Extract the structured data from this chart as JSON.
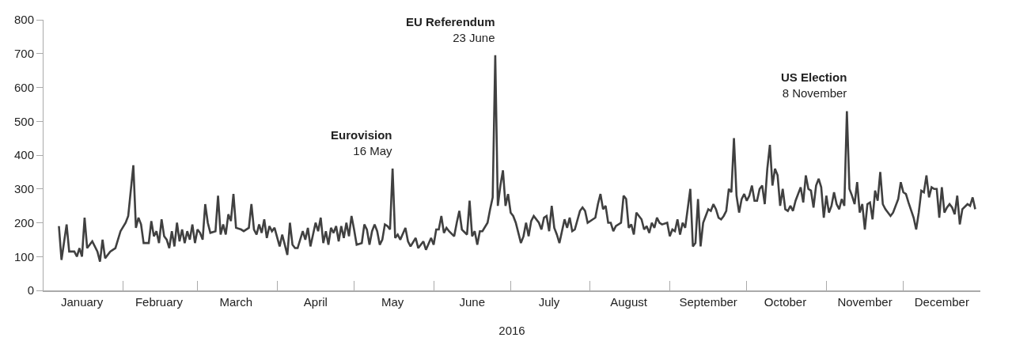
{
  "chart_data": {
    "type": "line",
    "xlabel": "2016",
    "x": [
      "2016-01-07",
      "2016-01-08",
      "2016-01-10",
      "2016-01-11",
      "2016-01-13",
      "2016-01-14",
      "2016-01-15",
      "2016-01-16",
      "2016-01-17",
      "2016-01-18",
      "2016-01-20",
      "2016-01-22",
      "2016-01-23",
      "2016-01-24",
      "2016-01-25",
      "2016-01-27",
      "2016-01-29",
      "2016-01-31",
      "2016-02-02",
      "2016-02-03",
      "2016-02-05",
      "2016-02-06",
      "2016-02-07",
      "2016-02-08",
      "2016-02-09",
      "2016-02-11",
      "2016-02-12",
      "2016-02-13",
      "2016-02-14",
      "2016-02-15",
      "2016-02-16",
      "2016-02-17",
      "2016-02-18",
      "2016-02-19",
      "2016-02-20",
      "2016-02-21",
      "2016-02-22",
      "2016-02-23",
      "2016-02-24",
      "2016-02-25",
      "2016-02-26",
      "2016-02-27",
      "2016-02-28",
      "2016-02-29",
      "2016-03-01",
      "2016-03-02",
      "2016-03-03",
      "2016-03-04",
      "2016-03-05",
      "2016-03-06",
      "2016-03-08",
      "2016-03-09",
      "2016-03-10",
      "2016-03-11",
      "2016-03-12",
      "2016-03-13",
      "2016-03-14",
      "2016-03-15",
      "2016-03-16",
      "2016-03-18",
      "2016-03-19",
      "2016-03-21",
      "2016-03-22",
      "2016-03-23",
      "2016-03-24",
      "2016-03-25",
      "2016-03-26",
      "2016-03-27",
      "2016-03-28",
      "2016-03-29",
      "2016-03-30",
      "2016-03-31",
      "2016-04-02",
      "2016-04-03",
      "2016-04-04",
      "2016-04-05",
      "2016-04-06",
      "2016-04-07",
      "2016-04-08",
      "2016-04-09",
      "2016-04-11",
      "2016-04-12",
      "2016-04-13",
      "2016-04-14",
      "2016-04-15",
      "2016-04-16",
      "2016-04-17",
      "2016-04-18",
      "2016-04-19",
      "2016-04-20",
      "2016-04-21",
      "2016-04-22",
      "2016-04-23",
      "2016-04-24",
      "2016-04-25",
      "2016-04-26",
      "2016-04-27",
      "2016-04-28",
      "2016-04-29",
      "2016-04-30",
      "2016-05-01",
      "2016-05-02",
      "2016-05-04",
      "2016-05-05",
      "2016-05-06",
      "2016-05-07",
      "2016-05-08",
      "2016-05-09",
      "2016-05-10",
      "2016-05-11",
      "2016-05-12",
      "2016-05-13",
      "2016-05-14",
      "2016-05-15",
      "2016-05-16",
      "2016-05-17",
      "2016-05-18",
      "2016-05-19",
      "2016-05-21",
      "2016-05-22",
      "2016-05-23",
      "2016-05-25",
      "2016-05-26",
      "2016-05-28",
      "2016-05-29",
      "2016-05-31",
      "2016-06-01",
      "2016-06-02",
      "2016-06-03",
      "2016-06-04",
      "2016-06-05",
      "2016-06-06",
      "2016-06-07",
      "2016-06-09",
      "2016-06-10",
      "2016-06-11",
      "2016-06-12",
      "2016-06-14",
      "2016-06-15",
      "2016-06-16",
      "2016-06-17",
      "2016-06-18",
      "2016-06-19",
      "2016-06-20",
      "2016-06-22",
      "2016-06-23",
      "2016-06-24",
      "2016-06-25",
      "2016-06-26",
      "2016-06-27",
      "2016-06-28",
      "2016-06-29",
      "2016-06-30",
      "2016-07-01",
      "2016-07-02",
      "2016-07-03",
      "2016-07-05",
      "2016-07-06",
      "2016-07-07",
      "2016-07-08",
      "2016-07-09",
      "2016-07-10",
      "2016-07-12",
      "2016-07-13",
      "2016-07-14",
      "2016-07-15",
      "2016-07-16",
      "2016-07-17",
      "2016-07-18",
      "2016-07-19",
      "2016-07-20",
      "2016-07-22",
      "2016-07-23",
      "2016-07-24",
      "2016-07-25",
      "2016-07-26",
      "2016-07-28",
      "2016-07-29",
      "2016-07-30",
      "2016-07-31",
      "2016-08-02",
      "2016-08-03",
      "2016-08-04",
      "2016-08-05",
      "2016-08-06",
      "2016-08-07",
      "2016-08-08",
      "2016-08-09",
      "2016-08-10",
      "2016-08-11",
      "2016-08-13",
      "2016-08-14",
      "2016-08-15",
      "2016-08-16",
      "2016-08-17",
      "2016-08-18",
      "2016-08-19",
      "2016-08-21",
      "2016-08-22",
      "2016-08-23",
      "2016-08-24",
      "2016-08-25",
      "2016-08-26",
      "2016-08-27",
      "2016-08-28",
      "2016-08-29",
      "2016-08-31",
      "2016-09-01",
      "2016-09-02",
      "2016-09-03",
      "2016-09-04",
      "2016-09-05",
      "2016-09-06",
      "2016-09-07",
      "2016-09-09",
      "2016-09-10",
      "2016-09-11",
      "2016-09-12",
      "2016-09-13",
      "2016-09-14",
      "2016-09-15",
      "2016-09-16",
      "2016-09-17",
      "2016-09-18",
      "2016-09-19",
      "2016-09-20",
      "2016-09-21",
      "2016-09-22",
      "2016-09-23",
      "2016-09-24",
      "2016-09-25",
      "2016-09-26",
      "2016-09-27",
      "2016-09-28",
      "2016-09-29",
      "2016-09-30",
      "2016-10-01",
      "2016-10-02",
      "2016-10-03",
      "2016-10-04",
      "2016-10-05",
      "2016-10-06",
      "2016-10-07",
      "2016-10-08",
      "2016-10-09",
      "2016-10-10",
      "2016-10-11",
      "2016-10-12",
      "2016-10-13",
      "2016-10-14",
      "2016-10-15",
      "2016-10-16",
      "2016-10-17",
      "2016-10-18",
      "2016-10-19",
      "2016-10-20",
      "2016-10-22",
      "2016-10-23",
      "2016-10-24",
      "2016-10-25",
      "2016-10-26",
      "2016-10-27",
      "2016-10-28",
      "2016-10-29",
      "2016-10-30",
      "2016-10-31",
      "2016-11-01",
      "2016-11-02",
      "2016-11-03",
      "2016-11-04",
      "2016-11-05",
      "2016-11-06",
      "2016-11-07",
      "2016-11-08",
      "2016-11-09",
      "2016-11-10",
      "2016-11-11",
      "2016-11-12",
      "2016-11-13",
      "2016-11-14",
      "2016-11-15",
      "2016-11-16",
      "2016-11-17",
      "2016-11-18",
      "2016-11-19",
      "2016-11-20",
      "2016-11-21",
      "2016-11-22",
      "2016-11-23",
      "2016-11-24",
      "2016-11-26",
      "2016-11-27",
      "2016-11-29",
      "2016-11-30",
      "2016-12-01",
      "2016-12-02",
      "2016-12-03",
      "2016-12-05",
      "2016-12-06",
      "2016-12-07",
      "2016-12-08",
      "2016-12-09",
      "2016-12-10",
      "2016-12-11",
      "2016-12-12",
      "2016-12-13",
      "2016-12-14",
      "2016-12-15",
      "2016-12-16",
      "2016-12-17",
      "2016-12-18",
      "2016-12-19",
      "2016-12-20",
      "2016-12-21",
      "2016-12-22",
      "2016-12-23",
      "2016-12-24",
      "2016-12-26",
      "2016-12-27",
      "2016-12-28",
      "2016-12-29"
    ],
    "values": [
      190,
      90,
      195,
      115,
      115,
      100,
      125,
      100,
      215,
      125,
      145,
      115,
      85,
      150,
      95,
      115,
      125,
      175,
      200,
      220,
      370,
      185,
      215,
      195,
      140,
      140,
      205,
      160,
      175,
      140,
      210,
      160,
      150,
      125,
      175,
      130,
      200,
      145,
      180,
      140,
      175,
      150,
      195,
      140,
      180,
      170,
      150,
      255,
      200,
      170,
      175,
      280,
      165,
      195,
      165,
      225,
      205,
      285,
      185,
      180,
      175,
      185,
      255,
      180,
      165,
      195,
      170,
      210,
      155,
      190,
      175,
      185,
      130,
      165,
      135,
      105,
      200,
      135,
      125,
      125,
      175,
      150,
      185,
      130,
      165,
      200,
      175,
      215,
      140,
      175,
      135,
      185,
      170,
      190,
      145,
      190,
      155,
      200,
      160,
      220,
      180,
      135,
      140,
      195,
      180,
      135,
      175,
      195,
      175,
      135,
      150,
      195,
      190,
      180,
      360,
      155,
      165,
      150,
      185,
      145,
      130,
      155,
      125,
      145,
      120,
      155,
      135,
      180,
      180,
      220,
      170,
      185,
      175,
      160,
      200,
      235,
      180,
      165,
      265,
      160,
      175,
      135,
      175,
      175,
      200,
      240,
      275,
      695,
      250,
      310,
      355,
      250,
      285,
      230,
      220,
      200,
      140,
      160,
      200,
      160,
      205,
      220,
      200,
      180,
      215,
      220,
      175,
      250,
      185,
      165,
      140,
      210,
      185,
      215,
      175,
      180,
      235,
      245,
      235,
      200,
      210,
      215,
      255,
      285,
      240,
      250,
      200,
      200,
      175,
      190,
      200,
      280,
      270,
      185,
      195,
      165,
      230,
      210,
      180,
      190,
      170,
      200,
      185,
      215,
      200,
      195,
      200,
      160,
      180,
      175,
      210,
      165,
      200,
      185,
      300,
      130,
      140,
      270,
      130,
      200,
      220,
      240,
      235,
      255,
      240,
      215,
      210,
      220,
      235,
      300,
      290,
      450,
      280,
      230,
      270,
      285,
      265,
      280,
      310,
      265,
      265,
      300,
      310,
      255,
      360,
      430,
      310,
      360,
      340,
      250,
      300,
      240,
      235,
      250,
      235,
      265,
      305,
      260,
      340,
      300,
      295,
      245,
      310,
      330,
      305,
      215,
      280,
      230,
      250,
      290,
      255,
      240,
      270,
      250,
      530,
      300,
      280,
      255,
      320,
      230,
      255,
      180,
      255,
      260,
      210,
      295,
      265,
      350,
      255,
      240,
      220,
      230,
      270,
      320,
      290,
      285,
      260,
      215,
      180,
      230,
      295,
      290,
      340,
      275,
      305,
      300,
      300,
      215,
      305,
      230,
      245,
      255,
      245,
      225,
      280,
      195,
      240,
      255,
      250,
      275,
      240
    ],
    "color": "#404040",
    "line_style": "solid",
    "marker": "none",
    "xlim": [
      "2016-01-01",
      "2016-12-31"
    ],
    "xticks": [
      {
        "value": "2016-01-16",
        "label": "January"
      },
      {
        "value": "2016-02-01",
        "label": null
      },
      {
        "value": "2016-02-15",
        "label": "February"
      },
      {
        "value": "2016-03-01",
        "label": null
      },
      {
        "value": "2016-03-16",
        "label": "March"
      },
      {
        "value": "2016-04-01",
        "label": null
      },
      {
        "value": "2016-04-16",
        "label": "April"
      },
      {
        "value": "2016-05-01",
        "label": null
      },
      {
        "value": "2016-05-16",
        "label": "May"
      },
      {
        "value": "2016-06-01",
        "label": null
      },
      {
        "value": "2016-06-16",
        "label": "June"
      },
      {
        "value": "2016-07-01",
        "label": null
      },
      {
        "value": "2016-07-16",
        "label": "July"
      },
      {
        "value": "2016-08-01",
        "label": null
      },
      {
        "value": "2016-08-16",
        "label": "August"
      },
      {
        "value": "2016-09-01",
        "label": null
      },
      {
        "value": "2016-09-16",
        "label": "September"
      },
      {
        "value": "2016-10-01",
        "label": null
      },
      {
        "value": "2016-10-16",
        "label": "October"
      },
      {
        "value": "2016-11-01",
        "label": null
      },
      {
        "value": "2016-11-16",
        "label": "November"
      },
      {
        "value": "2016-12-01",
        "label": null
      },
      {
        "value": "2016-12-16",
        "label": "December"
      }
    ],
    "ylim": [
      0,
      800
    ],
    "yticks": [
      0,
      100,
      200,
      300,
      400,
      500,
      600,
      700,
      800
    ],
    "annotations": [
      {
        "text": "Eurovision\n16 May",
        "x": "2016-05-16",
        "y": 360
      },
      {
        "text": "EU Referendum\n23 June",
        "x": "2016-06-25",
        "y": 695
      },
      {
        "text": "US Election\n8 November",
        "x": "2016-11-09",
        "y": 530
      }
    ]
  }
}
